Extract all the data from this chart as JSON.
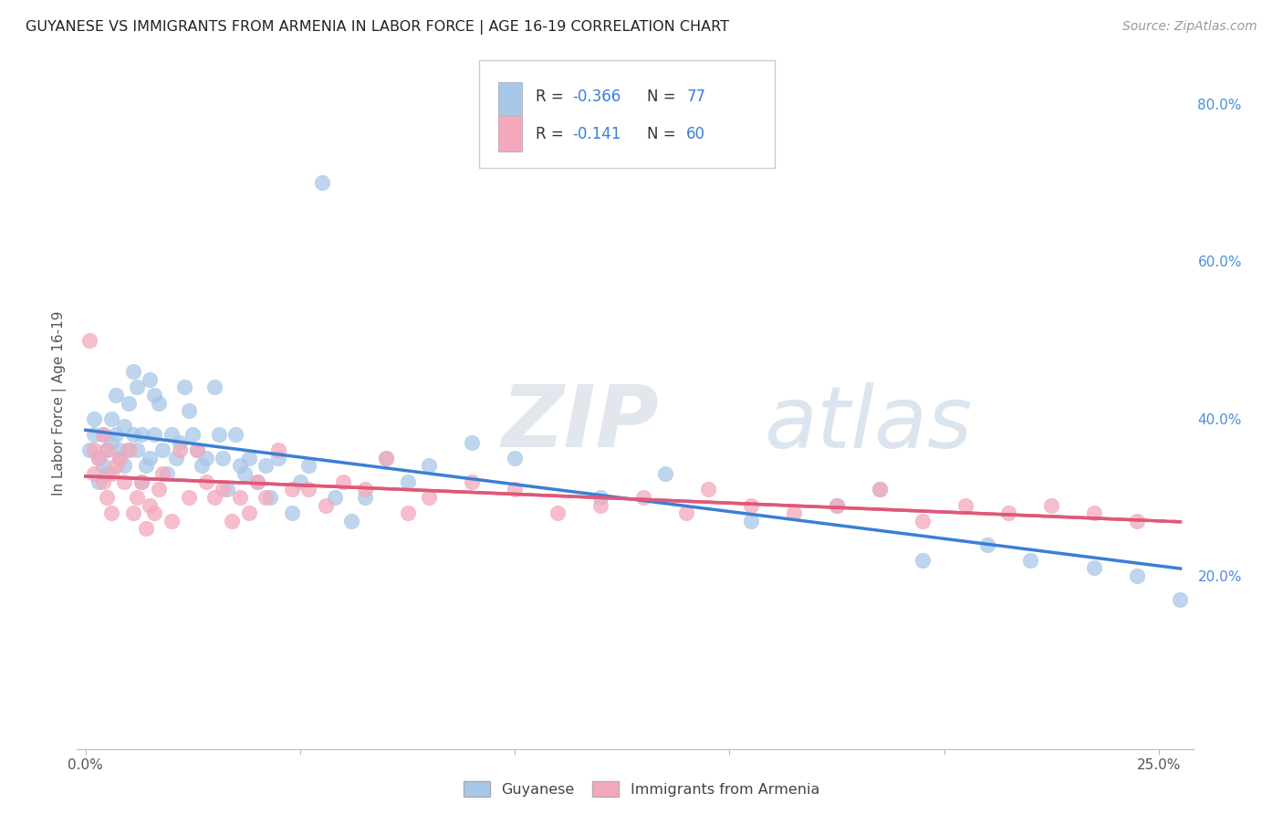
{
  "title": "GUYANESE VS IMMIGRANTS FROM ARMENIA IN LABOR FORCE | AGE 16-19 CORRELATION CHART",
  "source": "Source: ZipAtlas.com",
  "ylabel": "In Labor Force | Age 16-19",
  "xlim": [
    -0.002,
    0.258
  ],
  "ylim": [
    -0.02,
    0.86
  ],
  "r_guyanese": -0.366,
  "n_guyanese": 77,
  "r_armenia": -0.141,
  "n_armenia": 60,
  "color_guyanese": "#a8c8e8",
  "color_armenia": "#f4a8bc",
  "color_line_guyanese": "#3a7fd5",
  "color_line_armenia": "#e05878",
  "legend_label_guyanese": "Guyanese",
  "legend_label_armenia": "Immigrants from Armenia",
  "guyanese_x": [
    0.001,
    0.002,
    0.002,
    0.003,
    0.003,
    0.004,
    0.004,
    0.005,
    0.005,
    0.006,
    0.006,
    0.007,
    0.007,
    0.008,
    0.008,
    0.009,
    0.009,
    0.01,
    0.01,
    0.011,
    0.011,
    0.012,
    0.012,
    0.013,
    0.013,
    0.014,
    0.015,
    0.015,
    0.016,
    0.016,
    0.017,
    0.018,
    0.019,
    0.02,
    0.021,
    0.022,
    0.023,
    0.024,
    0.025,
    0.026,
    0.027,
    0.028,
    0.03,
    0.031,
    0.032,
    0.033,
    0.035,
    0.036,
    0.037,
    0.038,
    0.04,
    0.042,
    0.043,
    0.045,
    0.048,
    0.05,
    0.052,
    0.055,
    0.058,
    0.062,
    0.065,
    0.07,
    0.075,
    0.08,
    0.09,
    0.1,
    0.12,
    0.135,
    0.155,
    0.175,
    0.185,
    0.195,
    0.21,
    0.22,
    0.235,
    0.245,
    0.255
  ],
  "guyanese_y": [
    0.36,
    0.4,
    0.38,
    0.35,
    0.32,
    0.38,
    0.34,
    0.36,
    0.33,
    0.4,
    0.37,
    0.43,
    0.38,
    0.36,
    0.35,
    0.39,
    0.34,
    0.42,
    0.36,
    0.46,
    0.38,
    0.44,
    0.36,
    0.38,
    0.32,
    0.34,
    0.45,
    0.35,
    0.43,
    0.38,
    0.42,
    0.36,
    0.33,
    0.38,
    0.35,
    0.37,
    0.44,
    0.41,
    0.38,
    0.36,
    0.34,
    0.35,
    0.44,
    0.38,
    0.35,
    0.31,
    0.38,
    0.34,
    0.33,
    0.35,
    0.32,
    0.34,
    0.3,
    0.35,
    0.28,
    0.32,
    0.34,
    0.7,
    0.3,
    0.27,
    0.3,
    0.35,
    0.32,
    0.34,
    0.37,
    0.35,
    0.3,
    0.33,
    0.27,
    0.29,
    0.31,
    0.22,
    0.24,
    0.22,
    0.21,
    0.2,
    0.17
  ],
  "armenia_x": [
    0.001,
    0.002,
    0.002,
    0.003,
    0.004,
    0.004,
    0.005,
    0.005,
    0.006,
    0.006,
    0.007,
    0.008,
    0.009,
    0.01,
    0.011,
    0.012,
    0.013,
    0.014,
    0.015,
    0.016,
    0.017,
    0.018,
    0.02,
    0.022,
    0.024,
    0.026,
    0.028,
    0.03,
    0.032,
    0.034,
    0.036,
    0.038,
    0.04,
    0.042,
    0.045,
    0.048,
    0.052,
    0.056,
    0.06,
    0.065,
    0.07,
    0.075,
    0.08,
    0.09,
    0.1,
    0.11,
    0.12,
    0.13,
    0.14,
    0.145,
    0.155,
    0.165,
    0.175,
    0.185,
    0.195,
    0.205,
    0.215,
    0.225,
    0.235,
    0.245
  ],
  "armenia_y": [
    0.5,
    0.36,
    0.33,
    0.35,
    0.38,
    0.32,
    0.36,
    0.3,
    0.33,
    0.28,
    0.34,
    0.35,
    0.32,
    0.36,
    0.28,
    0.3,
    0.32,
    0.26,
    0.29,
    0.28,
    0.31,
    0.33,
    0.27,
    0.36,
    0.3,
    0.36,
    0.32,
    0.3,
    0.31,
    0.27,
    0.3,
    0.28,
    0.32,
    0.3,
    0.36,
    0.31,
    0.31,
    0.29,
    0.32,
    0.31,
    0.35,
    0.28,
    0.3,
    0.32,
    0.31,
    0.28,
    0.29,
    0.3,
    0.28,
    0.31,
    0.29,
    0.28,
    0.29,
    0.31,
    0.27,
    0.29,
    0.28,
    0.29,
    0.28,
    0.27
  ]
}
